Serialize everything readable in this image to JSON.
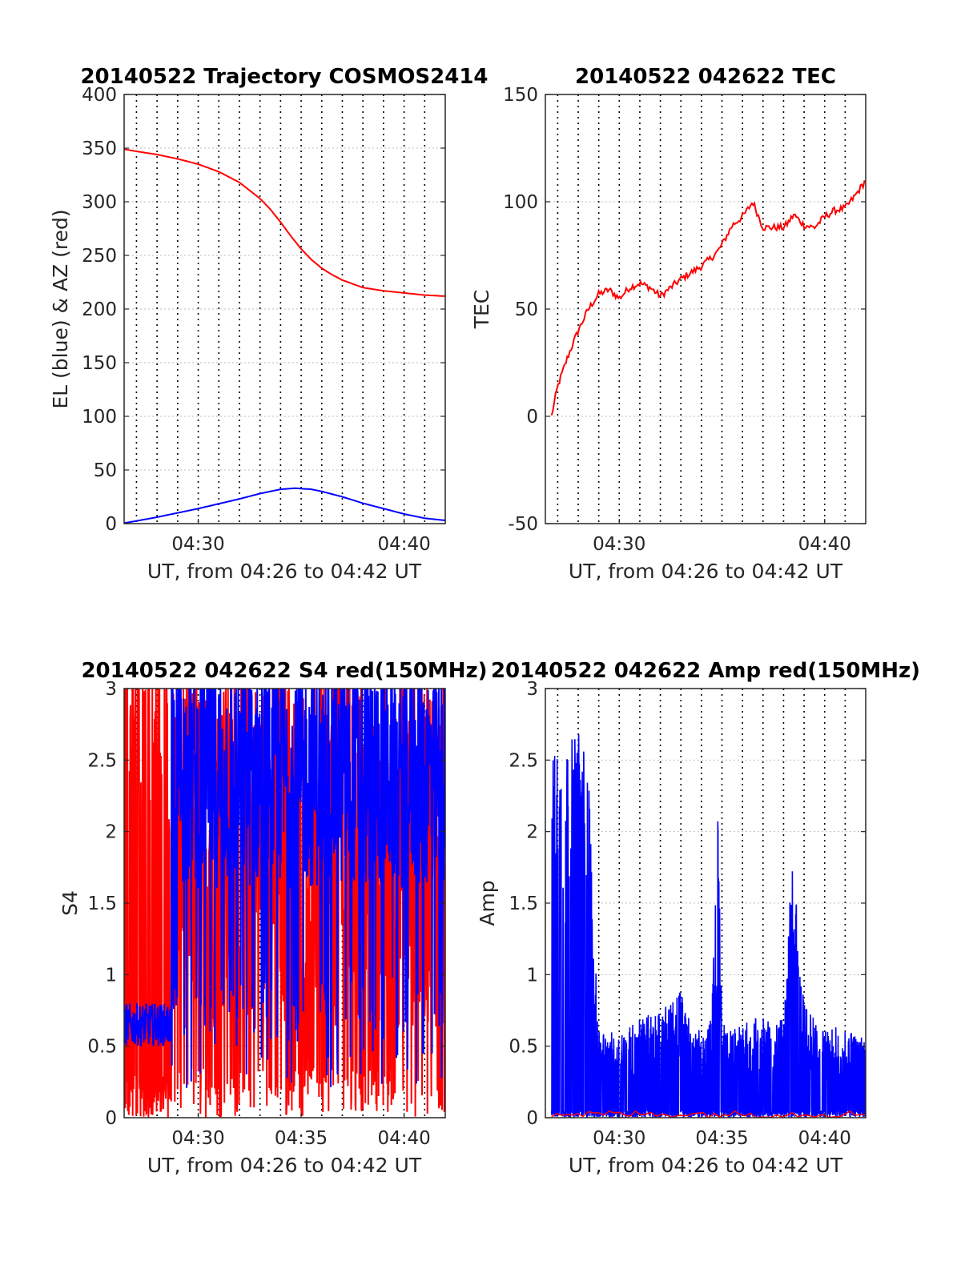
{
  "colors": {
    "red": "#ff0000",
    "blue": "#0000ff",
    "grid": "#000000",
    "axis": "#262626"
  },
  "chart_data": [
    {
      "type": "line",
      "title": "20140522 Trajectory COSMOS2414",
      "xlabel": "UT, from 04:26 to 04:42 UT",
      "ylabel": "EL (blue) & AZ (red)",
      "xlim": [
        26.4,
        42.0
      ],
      "ylim": [
        0,
        400
      ],
      "xticks": [
        30,
        40
      ],
      "xtick_labels": [
        "04:30",
        "04:40"
      ],
      "yticks": [
        0,
        50,
        100,
        150,
        200,
        250,
        300,
        350,
        400
      ],
      "ytick_labels": [
        "0",
        "50",
        "100",
        "150",
        "200",
        "250",
        "300",
        "350",
        "400"
      ],
      "x_gridlines": [
        27,
        28,
        29,
        30,
        31,
        32,
        33,
        34,
        35,
        36,
        37,
        38,
        39,
        40,
        41
      ],
      "grid": true,
      "series": [
        {
          "color": "red",
          "x": [
            26.4,
            27,
            28,
            29,
            30,
            31,
            32,
            33,
            33.5,
            34,
            34.5,
            35,
            35.5,
            36,
            36.5,
            37,
            38,
            39,
            40,
            41,
            42
          ],
          "y": [
            349,
            347,
            344,
            340,
            335,
            328,
            318,
            303,
            293,
            281,
            268,
            256,
            246,
            238,
            232,
            227,
            220,
            217,
            215,
            213,
            212
          ]
        },
        {
          "color": "blue",
          "x": [
            26.4,
            27,
            28,
            29,
            30,
            31,
            32,
            33,
            34,
            34.7,
            35.5,
            36,
            37,
            38,
            39,
            40,
            41,
            42
          ],
          "y": [
            0.5,
            2.5,
            6,
            10,
            14,
            18.5,
            23,
            28,
            32,
            33,
            32,
            30,
            25,
            19,
            14,
            9,
            5,
            3
          ]
        }
      ]
    },
    {
      "type": "line",
      "title": "20140522 042622 TEC",
      "xlabel": "UT, from 04:26 to 04:42 UT",
      "ylabel": "TEC",
      "xlim": [
        26.4,
        42.0
      ],
      "ylim": [
        -50,
        150
      ],
      "xticks": [
        30,
        40
      ],
      "xtick_labels": [
        "04:30",
        "04:40"
      ],
      "yticks": [
        -50,
        0,
        50,
        100,
        150
      ],
      "ytick_labels": [
        "-50",
        "0",
        "50",
        "100",
        "150"
      ],
      "x_gridlines": [
        27,
        28,
        29,
        30,
        31,
        32,
        33,
        34,
        35,
        36,
        37,
        38,
        39,
        40,
        41
      ],
      "grid": true,
      "series": [
        {
          "color": "red",
          "x": [
            26.7,
            27.0,
            27.5,
            28.0,
            28.5,
            29.0,
            29.5,
            30.0,
            30.5,
            31.0,
            31.5,
            32.0,
            32.5,
            33.0,
            33.5,
            34.0,
            34.5,
            34.8,
            35.0,
            35.5,
            36.0,
            36.3,
            36.5,
            37.0,
            37.5,
            38.0,
            38.2,
            38.5,
            39.0,
            39.5,
            40.0,
            40.5,
            41.0,
            41.5,
            42.0
          ],
          "y": [
            0,
            14,
            28,
            40,
            50,
            57,
            59,
            55,
            60,
            62,
            60,
            56,
            60,
            64,
            67,
            70,
            74,
            77,
            80,
            89,
            93,
            97,
            100,
            88,
            88,
            88,
            90,
            94,
            89,
            88,
            93,
            96,
            97,
            103,
            110
          ]
        }
      ]
    },
    {
      "type": "line",
      "title": "20140522 042622 S4 red(150MHz)",
      "xlabel": "UT, from 04:26 to 04:42 UT",
      "ylabel": "S4",
      "xlim": [
        26.4,
        42.0
      ],
      "ylim": [
        0,
        3
      ],
      "xticks": [
        30,
        35,
        40
      ],
      "xtick_labels": [
        "04:30",
        "04:35",
        "04:40"
      ],
      "yticks": [
        0,
        0.5,
        1,
        1.5,
        2,
        2.5,
        3
      ],
      "ytick_labels": [
        "0",
        "0.5",
        "1",
        "1.5",
        "2",
        "2.5",
        "3"
      ],
      "x_gridlines": [
        27,
        28,
        29,
        30,
        31,
        32,
        33,
        34,
        35,
        36,
        37,
        38,
        39,
        40,
        41
      ],
      "grid": true,
      "series": [
        {
          "color": "red",
          "x_range": [
            26.4,
            42.0
          ],
          "y_range": [
            0,
            3
          ],
          "note_free_values": "dense noise"
        },
        {
          "color": "blue",
          "x_range": [
            26.4,
            42.0
          ],
          "y_range": [
            0.4,
            3
          ],
          "note_free_values": "dense noise"
        }
      ]
    },
    {
      "type": "line",
      "title": "20140522 042622 Amp red(150MHz)",
      "xlabel": "UT, from 04:26 to 04:42 UT",
      "ylabel": "Amp",
      "xlim": [
        26.4,
        42.0
      ],
      "ylim": [
        0,
        3
      ],
      "xticks": [
        30,
        35,
        40
      ],
      "xtick_labels": [
        "04:30",
        "04:35",
        "04:40"
      ],
      "yticks": [
        0,
        0.5,
        1,
        1.5,
        2,
        2.5,
        3
      ],
      "ytick_labels": [
        "0",
        "0.5",
        "1",
        "1.5",
        "2",
        "2.5",
        "3"
      ],
      "x_gridlines": [
        27,
        28,
        29,
        30,
        31,
        32,
        33,
        34,
        35,
        36,
        37,
        38,
        39,
        40,
        41
      ],
      "grid": true,
      "series": [
        {
          "color": "blue",
          "envelope_x": [
            26.7,
            27.0,
            27.5,
            28.0,
            28.3,
            28.5,
            28.8,
            29.0,
            29.5,
            30.0,
            31.0,
            32.0,
            32.5,
            33.0,
            33.5,
            34.0,
            34.5,
            34.8,
            35.0,
            35.3,
            36.0,
            36.5,
            37.0,
            37.5,
            38.0,
            38.3,
            38.5,
            38.8,
            39.0,
            39.5,
            40.0,
            40.5,
            41.0,
            41.5,
            42.0
          ],
          "envelope_y": [
            2.5,
            2.7,
            2.6,
            2.75,
            2.6,
            2.5,
            1.2,
            0.6,
            0.6,
            0.6,
            0.7,
            0.75,
            0.8,
            0.9,
            0.65,
            0.6,
            0.7,
            2.15,
            0.7,
            0.6,
            0.65,
            0.7,
            0.7,
            0.65,
            0.7,
            1.5,
            1.95,
            1.2,
            0.8,
            0.7,
            0.6,
            0.65,
            0.6,
            0.6,
            0.6
          ]
        },
        {
          "color": "red",
          "x_range": [
            26.7,
            42.0
          ],
          "y_range": [
            0,
            0.6
          ]
        }
      ]
    }
  ]
}
